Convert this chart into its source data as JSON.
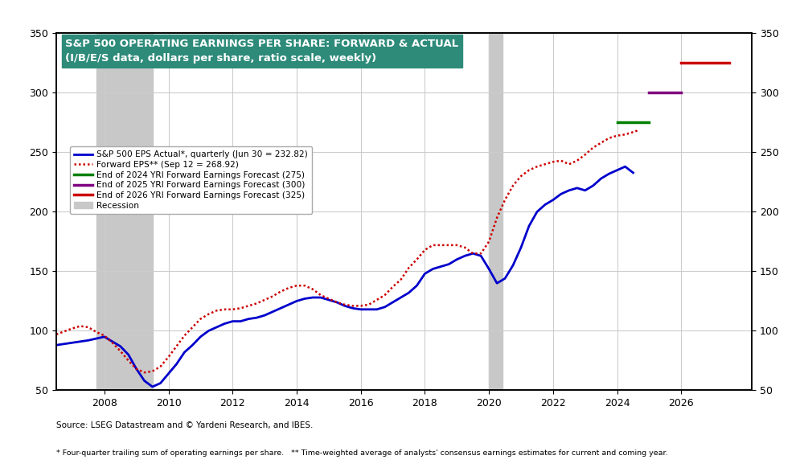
{
  "title_line1": "S&P 500 OPERATING EARNINGS PER SHARE: FORWARD & ACTUAL",
  "title_line2": "(I/B/E/S data, dollars per share, ratio scale, weekly)",
  "title_bg_color": "#2E8B7A",
  "title_text_color": "#FFFFFF",
  "source_text": "Source: LSEG Datastream and © Yardeni Research, and IBES.",
  "footnote_text": "* Four-quarter trailing sum of operating earnings per share.   ** Time-weighted average of analysts' consensus earnings estimates for current and coming year.",
  "ylim": [
    50,
    350
  ],
  "yticks": [
    50,
    100,
    150,
    200,
    250,
    300,
    350
  ],
  "xlabel_years": [
    2008,
    2010,
    2012,
    2014,
    2016,
    2018,
    2020,
    2022,
    2024,
    2026
  ],
  "xlim_start": 2006.5,
  "xlim_end": 2028.2,
  "recession1_start": 2007.75,
  "recession1_end": 2009.5,
  "recession2_start": 2020.0,
  "recession2_end": 2020.42,
  "actual_color": "#0000CC",
  "forward_color": "#CC0000",
  "forecast_2024_color": "#008000",
  "forecast_2025_color": "#800080",
  "forecast_2026_color": "#CC0000",
  "actual_x": [
    2006.5,
    2007.0,
    2007.5,
    2008.0,
    2008.25,
    2008.5,
    2008.75,
    2009.0,
    2009.25,
    2009.5,
    2009.75,
    2010.0,
    2010.25,
    2010.5,
    2010.75,
    2011.0,
    2011.25,
    2011.5,
    2011.75,
    2012.0,
    2012.25,
    2012.5,
    2012.75,
    2013.0,
    2013.25,
    2013.5,
    2013.75,
    2014.0,
    2014.25,
    2014.5,
    2014.75,
    2015.0,
    2015.25,
    2015.5,
    2015.75,
    2016.0,
    2016.25,
    2016.5,
    2016.75,
    2017.0,
    2017.25,
    2017.5,
    2017.75,
    2018.0,
    2018.25,
    2018.5,
    2018.75,
    2019.0,
    2019.25,
    2019.5,
    2019.75,
    2020.0,
    2020.25,
    2020.5,
    2020.75,
    2021.0,
    2021.25,
    2021.5,
    2021.75,
    2022.0,
    2022.25,
    2022.5,
    2022.75,
    2023.0,
    2023.25,
    2023.5,
    2023.75,
    2024.0,
    2024.25,
    2024.5
  ],
  "actual_y": [
    88,
    90,
    92,
    95,
    91,
    87,
    80,
    68,
    58,
    53,
    56,
    64,
    72,
    82,
    88,
    95,
    100,
    103,
    106,
    108,
    108,
    110,
    111,
    113,
    116,
    119,
    122,
    125,
    127,
    128,
    128,
    126,
    124,
    121,
    119,
    118,
    118,
    118,
    120,
    124,
    128,
    132,
    138,
    148,
    152,
    154,
    156,
    160,
    163,
    165,
    163,
    152,
    140,
    144,
    155,
    170,
    188,
    200,
    206,
    210,
    215,
    218,
    220,
    218,
    222,
    228,
    232,
    235,
    238,
    232.82
  ],
  "forward_x": [
    2006.5,
    2007.0,
    2007.25,
    2007.5,
    2007.75,
    2008.0,
    2008.25,
    2008.5,
    2008.75,
    2009.0,
    2009.25,
    2009.5,
    2009.75,
    2010.0,
    2010.25,
    2010.5,
    2010.75,
    2011.0,
    2011.25,
    2011.5,
    2011.75,
    2012.0,
    2012.25,
    2012.5,
    2012.75,
    2013.0,
    2013.25,
    2013.5,
    2013.75,
    2014.0,
    2014.25,
    2014.5,
    2014.75,
    2015.0,
    2015.25,
    2015.5,
    2015.75,
    2016.0,
    2016.25,
    2016.5,
    2016.75,
    2017.0,
    2017.25,
    2017.5,
    2017.75,
    2018.0,
    2018.25,
    2018.5,
    2018.75,
    2019.0,
    2019.25,
    2019.5,
    2019.75,
    2020.0,
    2020.25,
    2020.5,
    2020.75,
    2021.0,
    2021.25,
    2021.5,
    2021.75,
    2022.0,
    2022.25,
    2022.5,
    2022.75,
    2023.0,
    2023.25,
    2023.5,
    2023.75,
    2024.0,
    2024.25,
    2024.5,
    2024.7
  ],
  "forward_y": [
    97,
    102,
    104,
    103,
    99,
    96,
    90,
    83,
    75,
    68,
    65,
    66,
    70,
    78,
    87,
    96,
    103,
    110,
    114,
    117,
    118,
    118,
    119,
    121,
    123,
    126,
    129,
    133,
    136,
    138,
    138,
    135,
    130,
    127,
    124,
    122,
    121,
    121,
    122,
    126,
    130,
    137,
    143,
    153,
    160,
    168,
    172,
    172,
    172,
    172,
    170,
    165,
    165,
    175,
    195,
    210,
    222,
    230,
    235,
    238,
    240,
    242,
    243,
    240,
    243,
    248,
    254,
    258,
    262,
    264,
    265,
    267,
    268.92
  ],
  "forecast_2024_x_start": 2024.0,
  "forecast_2024_x_end": 2025.0,
  "forecast_2024_y": 275,
  "forecast_2025_x_start": 2025.0,
  "forecast_2025_x_end": 2026.0,
  "forecast_2025_y": 300,
  "forecast_2026_x_start": 2026.0,
  "forecast_2026_x_end": 2027.5,
  "forecast_2026_y": 325,
  "legend_actual_label": "S&P 500 EPS Actual*, quarterly (Jun 30 = 232.82)",
  "legend_forward_label": "Forward EPS** (Sep 12 = 268.92)",
  "legend_2024_label": "End of 2024 YRI Forward Earnings Forecast (275)",
  "legend_2025_label": "End of 2025 YRI Forward Earnings Forecast (300)",
  "legend_2026_label": "End of 2026 YRI Forward Earnings Forecast (325)",
  "legend_recession_label": "Recession",
  "bg_color": "#FFFFFF",
  "plot_bg_color": "#FFFFFF",
  "grid_color": "#CCCCCC"
}
